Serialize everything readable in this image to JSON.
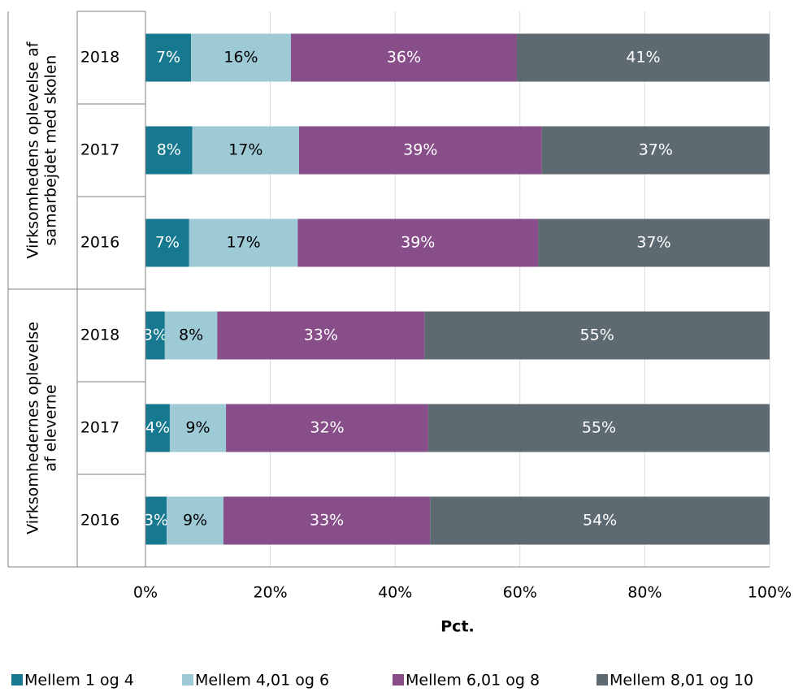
{
  "chart_data": {
    "type": "stacked-bar-horizontal",
    "x_label": "Pct.",
    "categories": [
      "2018",
      "2017",
      "2016",
      "2018",
      "2017",
      "2016"
    ],
    "groups": [
      {
        "lines": [
          "Virksomhedens oplevelse af",
          "samarbejdet med skolen"
        ],
        "size": 3
      },
      {
        "lines": [
          "Virksomhedernes oplevelse",
          "af eleverne"
        ],
        "size": 3
      }
    ],
    "series": [
      {
        "name": "Mellem 1 og 4",
        "color": "#17798f",
        "label_color": "#ffffff",
        "values": [
          7.3,
          7.5,
          7.0,
          3.1,
          3.9,
          3.4
        ],
        "value_labels": [
          "7%",
          "8%",
          "7%",
          "3%",
          "4%",
          "3%"
        ]
      },
      {
        "name": "Mellem 4,01 og 6",
        "color": "#9ecad6",
        "label_color": "#000000",
        "values": [
          16.0,
          17.1,
          17.4,
          8.4,
          9.0,
          9.1
        ],
        "value_labels": [
          "16%",
          "17%",
          "17%",
          "8%",
          "9%",
          "9%"
        ]
      },
      {
        "name": "Mellem 6,01 og 8",
        "color": "#874e8a",
        "label_color": "#ffffff",
        "values": [
          36.2,
          38.9,
          38.5,
          33.2,
          32.4,
          33.1
        ],
        "value_labels": [
          "36%",
          "39%",
          "39%",
          "33%",
          "32%",
          "33%"
        ]
      },
      {
        "name": "Mellem 8,01 og 10",
        "color": "#5e6a71",
        "label_color": "#ffffff",
        "values": [
          40.5,
          36.5,
          37.1,
          55.3,
          54.7,
          54.4
        ],
        "value_labels": [
          "41%",
          "37%",
          "37%",
          "55%",
          "55%",
          "54%"
        ]
      }
    ],
    "xlim": [
      0,
      100
    ],
    "xticks": [
      {
        "value": 0,
        "label": "0%"
      },
      {
        "value": 20,
        "label": "20%"
      },
      {
        "value": 40,
        "label": "40%"
      },
      {
        "value": 60,
        "label": "60%"
      },
      {
        "value": 80,
        "label": "80%"
      },
      {
        "value": 100,
        "label": "100%"
      }
    ],
    "grid": true
  }
}
